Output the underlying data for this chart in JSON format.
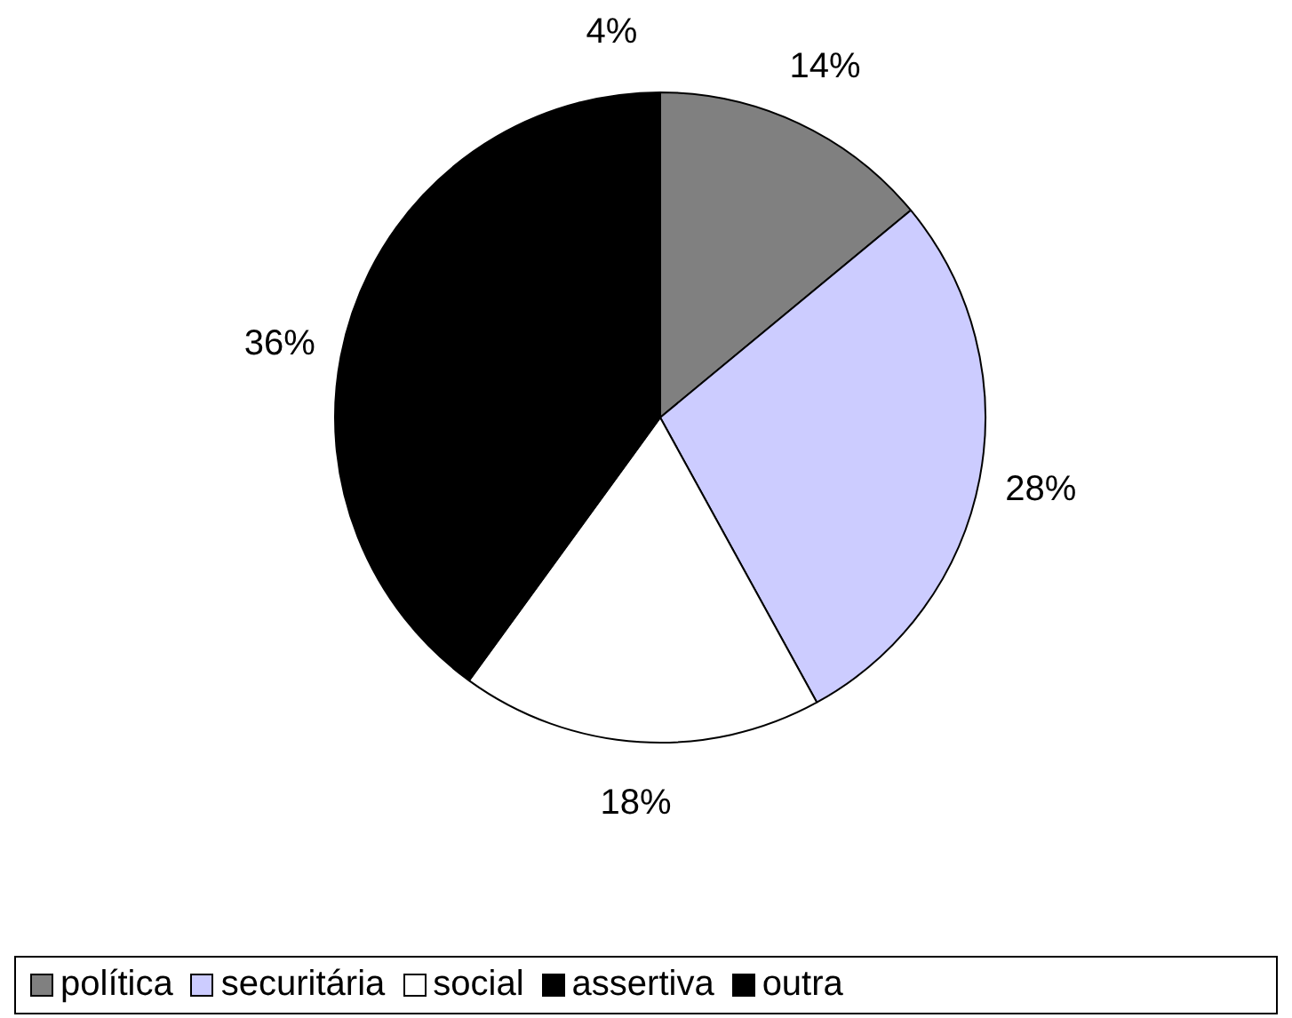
{
  "chart_data": {
    "type": "pie",
    "categories": [
      "política",
      "securitária",
      "social",
      "assertiva",
      "outra"
    ],
    "values": [
      14,
      28,
      18,
      36,
      4
    ],
    "colors": [
      "#808080",
      "#ccccff",
      "#ffffff",
      "#000000",
      "#000000"
    ],
    "value_labels": [
      "14%",
      "28%",
      "18%",
      "36%",
      "4%"
    ],
    "legend": "bottom"
  }
}
